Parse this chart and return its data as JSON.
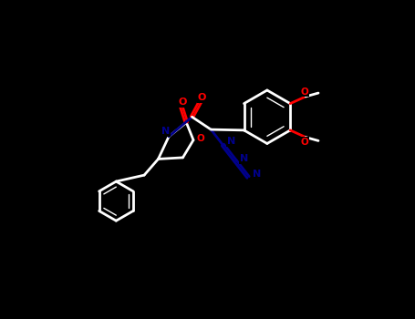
{
  "bg_color": "#000000",
  "line_color": "#ffffff",
  "O_color": "#ff0000",
  "N_color": "#00008b",
  "lw": 2.0,
  "fontsize": 8,
  "fig_w": 4.55,
  "fig_h": 3.5,
  "dpi": 100,
  "xlim": [
    0,
    4.55
  ],
  "ylim": [
    0,
    3.5
  ]
}
